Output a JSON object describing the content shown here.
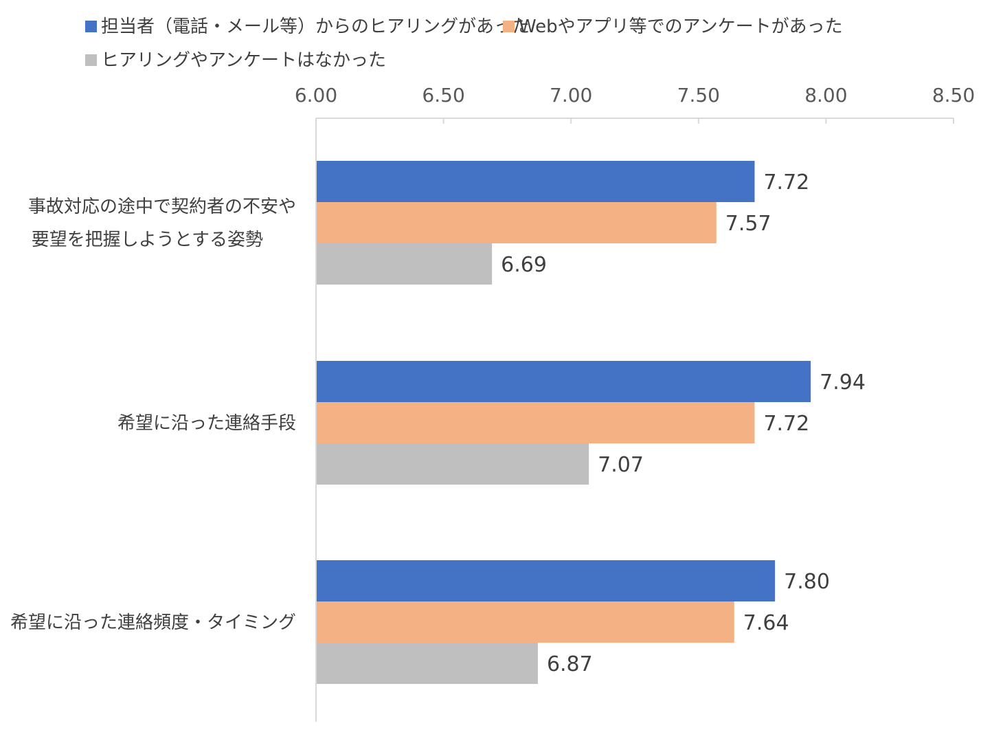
{
  "chart_data": {
    "type": "bar",
    "orientation": "horizontal",
    "categories": [
      [
        "事故対応の途中で契約者の不安や",
        "要望を把握しようとする姿勢"
      ],
      [
        "希望に沿った連絡手段"
      ],
      [
        "希望に沿った連絡頻度・タイミング"
      ]
    ],
    "series": [
      {
        "name": "担当者（電話・メール等）からのヒアリングがあった",
        "color": "#4472C4",
        "values": [
          7.72,
          7.94,
          7.8
        ]
      },
      {
        "name": "Webやアプリ等でのアンケートがあった",
        "color": "#F4B183",
        "values": [
          7.57,
          7.72,
          7.64
        ]
      },
      {
        "name": "ヒアリングやアンケートはなかった",
        "color": "#BFBFBF",
        "values": [
          6.69,
          7.07,
          6.87
        ]
      }
    ],
    "value_axis": {
      "position": "top",
      "min": 6.0,
      "max": 8.5,
      "ticks": [
        "6.00",
        "6.50",
        "7.00",
        "7.50",
        "8.00",
        "8.50"
      ]
    },
    "data_labels": [
      [
        "7.72",
        "7.94",
        "7.80"
      ],
      [
        "7.57",
        "7.72",
        "7.64"
      ],
      [
        "6.69",
        "7.07",
        "6.87"
      ]
    ],
    "legend_position": "top",
    "grid": false,
    "axis_color": "#D9D9D9"
  }
}
